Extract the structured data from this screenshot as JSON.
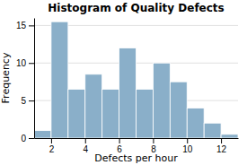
{
  "chart_data": {
    "type": "histogram",
    "title": "Histogram of Quality Defects",
    "xlabel": "Defects per hour",
    "ylabel": "Frequency",
    "bins": [
      1,
      2,
      3,
      4,
      5,
      6,
      7,
      8,
      9,
      10,
      11,
      12,
      13
    ],
    "values": [
      1,
      15.5,
      6.5,
      8.5,
      6.5,
      12,
      6.5,
      10,
      7.5,
      4,
      2,
      0.5
    ],
    "color": "#8aafc9",
    "xlim": [
      1,
      13
    ],
    "xticks": [
      2,
      4,
      6,
      8,
      10,
      12
    ],
    "ylim": [
      0,
      16
    ],
    "yticks": [
      0,
      5,
      10,
      15
    ],
    "grid": true
  }
}
